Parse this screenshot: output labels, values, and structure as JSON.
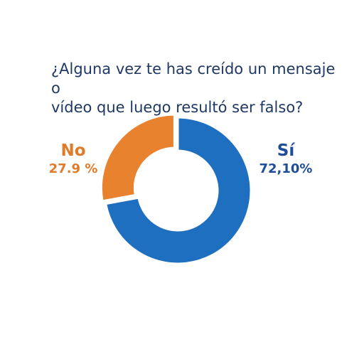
{
  "chart_data": {
    "type": "pie",
    "title": [
      "¿Alguna vez te has creído un mensaje o",
      "vídeo que luego resultó ser falso?"
    ],
    "donut": true,
    "slices": [
      {
        "label": "Sí",
        "value": 72.1,
        "value_label": "72,10%",
        "color": "#1f6fc1"
      },
      {
        "label": "No",
        "value": 27.9,
        "value_label": "27.9 %",
        "color": "#e8822f"
      }
    ],
    "label_colors": {
      "Sí": "#1f4e99",
      "No": "#e07b2a"
    },
    "legend": "none"
  }
}
